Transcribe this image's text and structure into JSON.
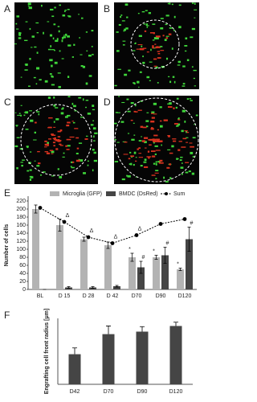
{
  "panels": [
    {
      "label": "A"
    },
    {
      "label": "B"
    },
    {
      "label": "C"
    },
    {
      "label": "D"
    }
  ],
  "chart_data": [
    {
      "type": "bar",
      "label": "E",
      "ylabel": "Number of cells",
      "categories": [
        "BL",
        "D 15",
        "D 28",
        "D 42",
        "D70",
        "D90",
        "D120"
      ],
      "series": [
        {
          "name": "Microglia (GFP)",
          "color": "#b3b3b3",
          "values": [
            200,
            160,
            125,
            110,
            80,
            80,
            50
          ],
          "errors": [
            10,
            15,
            5,
            8,
            10,
            5,
            3
          ],
          "annotations": [
            null,
            null,
            null,
            null,
            "*",
            "*",
            "*"
          ]
        },
        {
          "name": "BMDC (DsRed)",
          "color": "#454545",
          "values": [
            0,
            5,
            5,
            8,
            55,
            85,
            125
          ],
          "errors": [
            0,
            2,
            2,
            2,
            15,
            20,
            30
          ],
          "annotations": [
            null,
            null,
            null,
            null,
            "#",
            "#",
            "#"
          ]
        },
        {
          "name": "Sum",
          "type": "line",
          "color": "#000000",
          "values": [
            203,
            168,
            130,
            115,
            135,
            163,
            175
          ],
          "annotations": [
            null,
            "Δ",
            "Δ",
            "Δ",
            "Δ",
            null,
            null
          ]
        }
      ],
      "ylim": [
        0,
        220
      ],
      "yticks": [
        0,
        20,
        40,
        60,
        80,
        100,
        120,
        140,
        160,
        180,
        200,
        220
      ]
    },
    {
      "type": "bar",
      "label": "F",
      "ylabel": "Engrafting cell front radius [μm]",
      "categories": [
        "D42",
        "D70",
        "D90",
        "D120"
      ],
      "series": [
        {
          "color": "#454545",
          "values": [
            240,
            400,
            420,
            465
          ],
          "errors": [
            50,
            65,
            40,
            30
          ]
        }
      ],
      "ylim": [
        0,
        500
      ]
    }
  ]
}
